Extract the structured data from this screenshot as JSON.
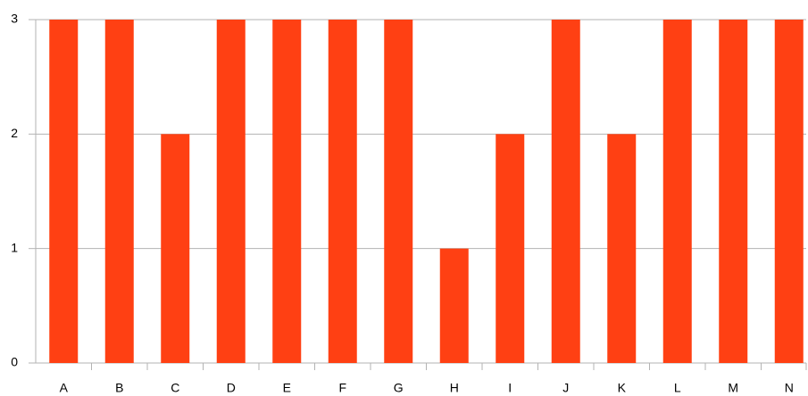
{
  "chart_data": {
    "type": "bar",
    "categories": [
      "A",
      "B",
      "C",
      "D",
      "E",
      "F",
      "G",
      "H",
      "I",
      "J",
      "K",
      "L",
      "M",
      "N"
    ],
    "values": [
      3,
      3,
      2,
      3,
      3,
      3,
      3,
      1,
      2,
      3,
      2,
      3,
      3,
      3
    ],
    "color": "#ff4013",
    "ylim": [
      0,
      3
    ],
    "yticks": [
      0,
      1,
      2,
      3
    ],
    "grid": true
  }
}
